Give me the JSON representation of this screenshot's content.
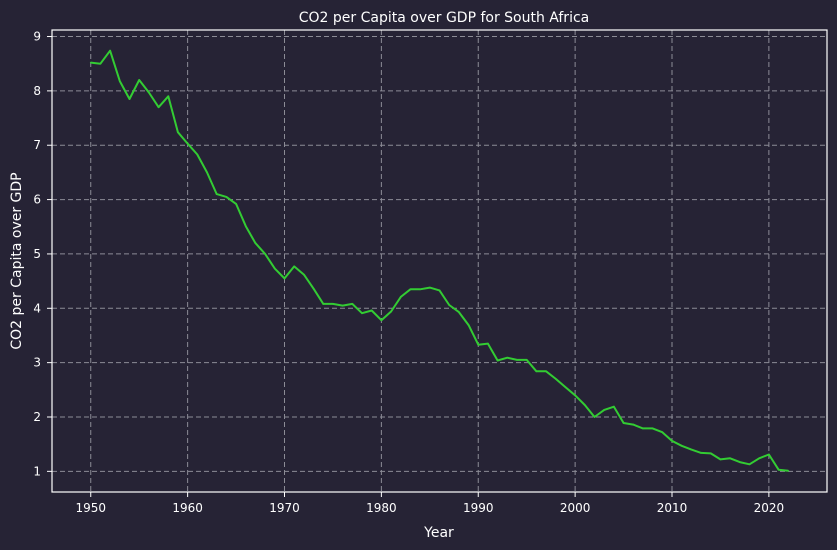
{
  "chart_data": {
    "type": "line",
    "title": "CO2 per Capita over GDP for South Africa",
    "xlabel": "Year",
    "ylabel": "CO2 per Capita over GDP",
    "xlim": [
      1946,
      2026
    ],
    "ylim": [
      0.62,
      9.12
    ],
    "xticks": [
      1950,
      1960,
      1970,
      1980,
      1990,
      2000,
      2010,
      2020
    ],
    "yticks": [
      1,
      2,
      3,
      4,
      5,
      6,
      7,
      8,
      9
    ],
    "grid": true,
    "series": [
      {
        "color": "#33cc33",
        "x": [
          1950,
          1951,
          1952,
          1953,
          1954,
          1955,
          1956,
          1957,
          1958,
          1959,
          1960,
          1961,
          1962,
          1963,
          1964,
          1965,
          1966,
          1967,
          1968,
          1969,
          1970,
          1971,
          1972,
          1973,
          1974,
          1975,
          1976,
          1977,
          1978,
          1979,
          1980,
          1981,
          1982,
          1983,
          1984,
          1985,
          1986,
          1987,
          1988,
          1989,
          1990,
          1991,
          1992,
          1993,
          1994,
          1995,
          1996,
          1997,
          1998,
          1999,
          2000,
          2001,
          2002,
          2003,
          2004,
          2005,
          2006,
          2007,
          2008,
          2009,
          2010,
          2011,
          2012,
          2013,
          2014,
          2015,
          2016,
          2017,
          2018,
          2019,
          2020,
          2021,
          2022
        ],
        "values": [
          8.52,
          8.5,
          8.74,
          8.18,
          7.85,
          8.2,
          7.97,
          7.7,
          7.9,
          7.24,
          7.03,
          6.83,
          6.5,
          6.1,
          6.05,
          5.92,
          5.51,
          5.2,
          5.0,
          4.73,
          4.55,
          4.77,
          4.62,
          4.36,
          4.08,
          4.08,
          4.05,
          4.08,
          3.91,
          3.96,
          3.78,
          3.94,
          4.21,
          4.35,
          4.35,
          4.38,
          4.33,
          4.06,
          3.93,
          3.69,
          3.33,
          3.35,
          3.04,
          3.09,
          3.05,
          3.05,
          2.84,
          2.84,
          2.7,
          2.55,
          2.4,
          2.22,
          2.0,
          2.13,
          2.19,
          1.89,
          1.86,
          1.79,
          1.79,
          1.72,
          1.56,
          1.47,
          1.4,
          1.34,
          1.33,
          1.22,
          1.24,
          1.17,
          1.13,
          1.24,
          1.31,
          1.03,
          1.01
        ]
      }
    ]
  },
  "colors": {
    "background": "#262335",
    "grid": "#8c8c96",
    "axes": "#ffffff",
    "line": "#33cc33"
  }
}
